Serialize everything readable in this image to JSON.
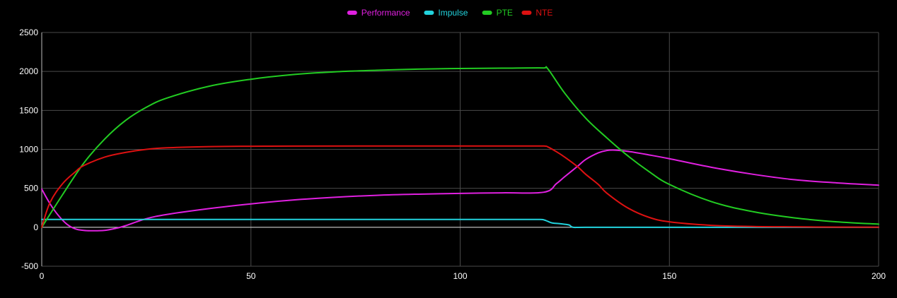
{
  "chart_data": {
    "type": "line",
    "title": "",
    "xlabel": "",
    "ylabel": "",
    "xlim": [
      0,
      200
    ],
    "ylim": [
      -500,
      2500
    ],
    "x_ticks": [
      0,
      50,
      100,
      150,
      200
    ],
    "y_ticks": [
      -500,
      0,
      500,
      1000,
      1500,
      2000,
      2500
    ],
    "grid": true,
    "legend_position": "top-center",
    "zero_line": true,
    "series": [
      {
        "name": "Performance",
        "color": "#e020e0",
        "x": [
          0,
          2,
          4,
          6,
          8,
          10,
          12,
          15,
          18,
          20,
          25,
          30,
          40,
          50,
          60,
          70,
          80,
          90,
          100,
          110,
          120,
          123,
          125,
          128,
          130,
          133,
          135,
          137,
          140,
          145,
          150,
          160,
          170,
          180,
          190,
          200
        ],
        "y": [
          490,
          300,
          150,
          40,
          -20,
          -40,
          -45,
          -40,
          -10,
          20,
          110,
          165,
          240,
          300,
          350,
          385,
          410,
          425,
          435,
          442,
          450,
          560,
          650,
          780,
          870,
          955,
          985,
          990,
          975,
          930,
          880,
          770,
          680,
          610,
          570,
          540
        ]
      },
      {
        "name": "Impulse",
        "color": "#22d3dd",
        "x": [
          0,
          1,
          20,
          40,
          60,
          80,
          100,
          119,
          120,
          121,
          122,
          124,
          126,
          127,
          130,
          150,
          170,
          200
        ],
        "y": [
          100,
          100,
          100,
          100,
          100,
          100,
          100,
          100,
          95,
          75,
          55,
          45,
          30,
          0,
          0,
          0,
          0,
          0
        ]
      },
      {
        "name": "PTE",
        "color": "#22cc22",
        "x": [
          0,
          5,
          10,
          15,
          20,
          25,
          30,
          40,
          50,
          60,
          70,
          80,
          90,
          100,
          110,
          120,
          121,
          125,
          130,
          135,
          140,
          145,
          150,
          160,
          170,
          180,
          190,
          200
        ],
        "y": [
          0,
          420,
          820,
          1130,
          1370,
          1540,
          1660,
          1810,
          1900,
          1960,
          1995,
          2015,
          2030,
          2038,
          2042,
          2045,
          2030,
          1720,
          1400,
          1150,
          920,
          720,
          550,
          330,
          200,
          120,
          70,
          40
        ]
      },
      {
        "name": "NTE",
        "color": "#dd1111",
        "x": [
          0,
          2,
          5,
          8,
          10,
          15,
          20,
          25,
          30,
          40,
          50,
          60,
          80,
          100,
          120,
          121,
          123,
          125,
          128,
          130,
          133,
          135,
          140,
          145,
          150,
          160,
          170,
          180,
          190,
          200
        ],
        "y": [
          0,
          320,
          560,
          710,
          790,
          900,
          960,
          1000,
          1020,
          1035,
          1040,
          1042,
          1043,
          1043,
          1043,
          1030,
          970,
          900,
          780,
          680,
          550,
          440,
          250,
          130,
          70,
          25,
          10,
          5,
          2,
          1
        ]
      }
    ]
  }
}
